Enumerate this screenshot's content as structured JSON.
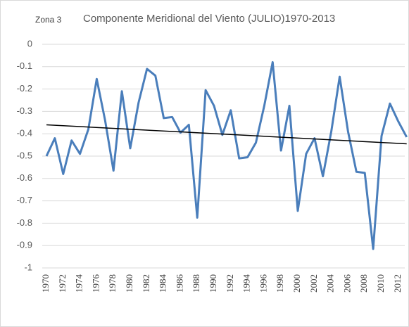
{
  "chart_data": {
    "type": "line",
    "zone_label": "Zona 3",
    "title": "Componente Meridional del Viento (JULIO)1970-2013",
    "categories": [
      "1970",
      null,
      "1972",
      null,
      "1974",
      null,
      "1976",
      null,
      "1978",
      null,
      "1980",
      null,
      "1982",
      null,
      "1984",
      null,
      "1986",
      null,
      "1988",
      null,
      "1990",
      null,
      "1992",
      null,
      "1994",
      null,
      "1996",
      null,
      "1998",
      null,
      "2000",
      null,
      "2002",
      null,
      "2004",
      null,
      "2006",
      null,
      "2008",
      null,
      "2010",
      null,
      "2012",
      null
    ],
    "series": [
      {
        "color": "#4a7ebb",
        "values": [
          -0.5,
          -0.42,
          -0.58,
          -0.43,
          -0.49,
          -0.38,
          -0.155,
          -0.34,
          -0.565,
          -0.21,
          -0.465,
          -0.26,
          -0.11,
          -0.14,
          -0.33,
          -0.325,
          -0.395,
          -0.36,
          -0.775,
          -0.205,
          -0.275,
          -0.405,
          -0.295,
          -0.51,
          -0.505,
          -0.44,
          -0.275,
          -0.08,
          -0.475,
          -0.275,
          -0.745,
          -0.49,
          -0.42,
          -0.59,
          -0.39,
          -0.145,
          -0.39,
          -0.57,
          -0.575,
          -0.915,
          -0.41,
          -0.265,
          -0.345,
          -0.415
        ]
      }
    ],
    "trendline": {
      "color": "#000000",
      "values": [
        -0.36,
        -0.445
      ]
    },
    "ylim": [
      -1,
      0
    ],
    "yticks": [
      0,
      -0.1,
      -0.2,
      -0.3,
      -0.4,
      -0.5,
      -0.6,
      -0.7,
      -0.8,
      -0.9,
      -1
    ],
    "grid": true
  }
}
